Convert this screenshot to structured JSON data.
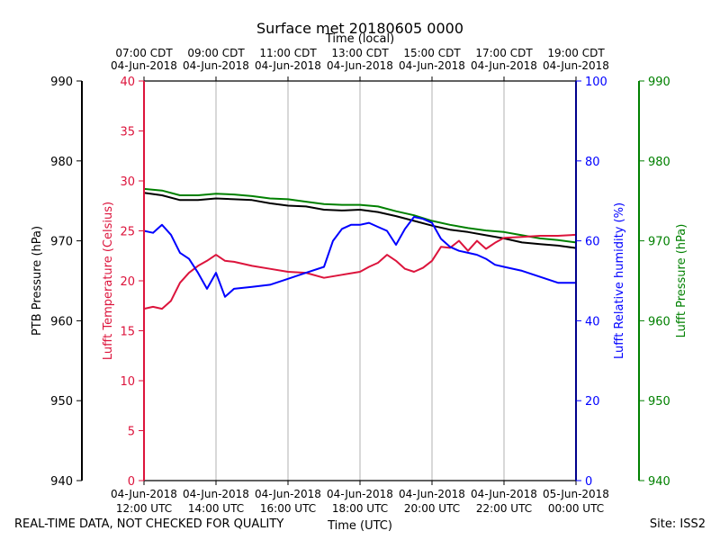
{
  "chart_data": {
    "type": "line",
    "title": "Surface met 20180605 0000",
    "top_axis_label": "Time (local)",
    "top_ticks": [
      {
        "time": "07:00 CDT",
        "date": "04-Jun-2018"
      },
      {
        "time": "09:00 CDT",
        "date": "04-Jun-2018"
      },
      {
        "time": "11:00 CDT",
        "date": "04-Jun-2018"
      },
      {
        "time": "13:00 CDT",
        "date": "04-Jun-2018"
      },
      {
        "time": "15:00 CDT",
        "date": "04-Jun-2018"
      },
      {
        "time": "17:00 CDT",
        "date": "04-Jun-2018"
      },
      {
        "time": "19:00 CDT",
        "date": "04-Jun-2018"
      }
    ],
    "xlabel": "Time (UTC)",
    "bottom_ticks": [
      {
        "date": "04-Jun-2018",
        "time": "12:00 UTC"
      },
      {
        "date": "04-Jun-2018",
        "time": "14:00 UTC"
      },
      {
        "date": "04-Jun-2018",
        "time": "16:00 UTC"
      },
      {
        "date": "04-Jun-2018",
        "time": "18:00 UTC"
      },
      {
        "date": "04-Jun-2018",
        "time": "20:00 UTC"
      },
      {
        "date": "04-Jun-2018",
        "time": "22:00 UTC"
      },
      {
        "date": "05-Jun-2018",
        "time": "00:00 UTC"
      }
    ],
    "xlim_hours": [
      12,
      24
    ],
    "axes": {
      "ptb": {
        "label": "PTB Pressure (hPa)",
        "range": [
          940,
          990
        ],
        "ticks": [
          940,
          950,
          960,
          970,
          980,
          990
        ],
        "color": "#000000"
      },
      "temp": {
        "label": "Lufft Temperature (Celsius)",
        "range": [
          0,
          40
        ],
        "ticks": [
          0,
          5,
          10,
          15,
          20,
          25,
          30,
          35,
          40
        ],
        "color": "#dc143c"
      },
      "rh": {
        "label": "Lufft Relative humidity (%)",
        "range": [
          0,
          100
        ],
        "ticks": [
          0,
          20,
          40,
          60,
          80,
          100
        ],
        "color": "#0000ff"
      },
      "lp": {
        "label": "Lufft Pressure (hPa)",
        "range": [
          940,
          990
        ],
        "ticks": [
          940,
          950,
          960,
          970,
          980,
          990
        ],
        "color": "#008000"
      }
    },
    "series": [
      {
        "name": "PTB Pressure",
        "axis": "ptb",
        "color": "#000000",
        "x": [
          12.0,
          12.5,
          13.0,
          13.5,
          14.0,
          14.5,
          15.0,
          15.5,
          16.0,
          16.5,
          17.0,
          17.5,
          18.0,
          18.5,
          19.0,
          19.5,
          20.0,
          20.5,
          21.0,
          21.5,
          22.0,
          22.5,
          23.0,
          23.5,
          24.0
        ],
        "values": [
          976.0,
          975.7,
          975.1,
          975.1,
          975.3,
          975.2,
          975.1,
          974.7,
          974.4,
          974.3,
          973.9,
          973.8,
          973.9,
          973.6,
          973.1,
          972.5,
          971.9,
          971.4,
          971.1,
          970.7,
          970.3,
          969.8,
          969.6,
          969.4,
          969.1
        ]
      },
      {
        "name": "Lufft Pressure",
        "axis": "lp",
        "color": "#008000",
        "x": [
          12.0,
          12.5,
          13.0,
          13.5,
          14.0,
          14.5,
          15.0,
          15.5,
          16.0,
          16.5,
          17.0,
          17.5,
          18.0,
          18.5,
          19.0,
          19.5,
          20.0,
          20.5,
          21.0,
          21.5,
          22.0,
          22.5,
          23.0,
          23.5,
          24.0
        ],
        "values": [
          976.5,
          976.3,
          975.7,
          975.7,
          975.9,
          975.8,
          975.6,
          975.3,
          975.2,
          974.9,
          974.6,
          974.5,
          974.5,
          974.3,
          973.7,
          973.2,
          972.5,
          972.0,
          971.6,
          971.3,
          971.1,
          970.7,
          970.3,
          970.1,
          969.8
        ]
      },
      {
        "name": "Lufft Temperature",
        "axis": "temp",
        "color": "#dc143c",
        "x": [
          12.0,
          12.25,
          12.5,
          12.75,
          13.0,
          13.25,
          13.5,
          13.75,
          14.0,
          14.25,
          14.5,
          15.0,
          15.5,
          16.0,
          16.5,
          17.0,
          17.5,
          18.0,
          18.25,
          18.5,
          18.75,
          19.0,
          19.25,
          19.5,
          19.75,
          20.0,
          20.25,
          20.5,
          20.75,
          21.0,
          21.25,
          21.5,
          21.75,
          22.0,
          22.5,
          23.0,
          23.5,
          24.0
        ],
        "values": [
          17.2,
          17.4,
          17.2,
          18.0,
          19.8,
          20.8,
          21.5,
          22.0,
          22.6,
          22.0,
          21.9,
          21.5,
          21.2,
          20.9,
          20.8,
          20.3,
          20.6,
          20.9,
          21.4,
          21.8,
          22.6,
          22.0,
          21.2,
          20.9,
          21.3,
          22.0,
          23.4,
          23.3,
          24.0,
          23.0,
          24.0,
          23.2,
          23.8,
          24.3,
          24.4,
          24.5,
          24.5,
          24.6
        ]
      },
      {
        "name": "Lufft Relative humidity",
        "axis": "rh",
        "color": "#0000ff",
        "x": [
          12.0,
          12.25,
          12.5,
          12.75,
          13.0,
          13.25,
          13.5,
          13.75,
          14.0,
          14.25,
          14.5,
          15.0,
          15.5,
          16.0,
          16.5,
          17.0,
          17.25,
          17.5,
          17.75,
          18.0,
          18.25,
          18.5,
          18.75,
          19.0,
          19.25,
          19.5,
          19.75,
          20.0,
          20.25,
          20.5,
          20.75,
          21.0,
          21.25,
          21.5,
          21.75,
          22.0,
          22.5,
          23.0,
          23.5,
          24.0
        ],
        "values": [
          62.5,
          62.0,
          64.0,
          61.5,
          57.0,
          55.5,
          52.0,
          48.0,
          52.0,
          46.0,
          48.0,
          48.5,
          49.0,
          50.5,
          52.0,
          53.5,
          60.0,
          63.0,
          64.0,
          64.0,
          64.5,
          63.5,
          62.5,
          59.0,
          63.0,
          66.0,
          65.5,
          64.5,
          60.5,
          58.5,
          57.5,
          57.0,
          56.5,
          55.5,
          54.0,
          53.5,
          52.5,
          51.0,
          49.5,
          49.5
        ]
      }
    ]
  },
  "footer": {
    "left": "REAL-TIME DATA, NOT CHECKED FOR QUALITY",
    "right": "Site: ISS2"
  }
}
